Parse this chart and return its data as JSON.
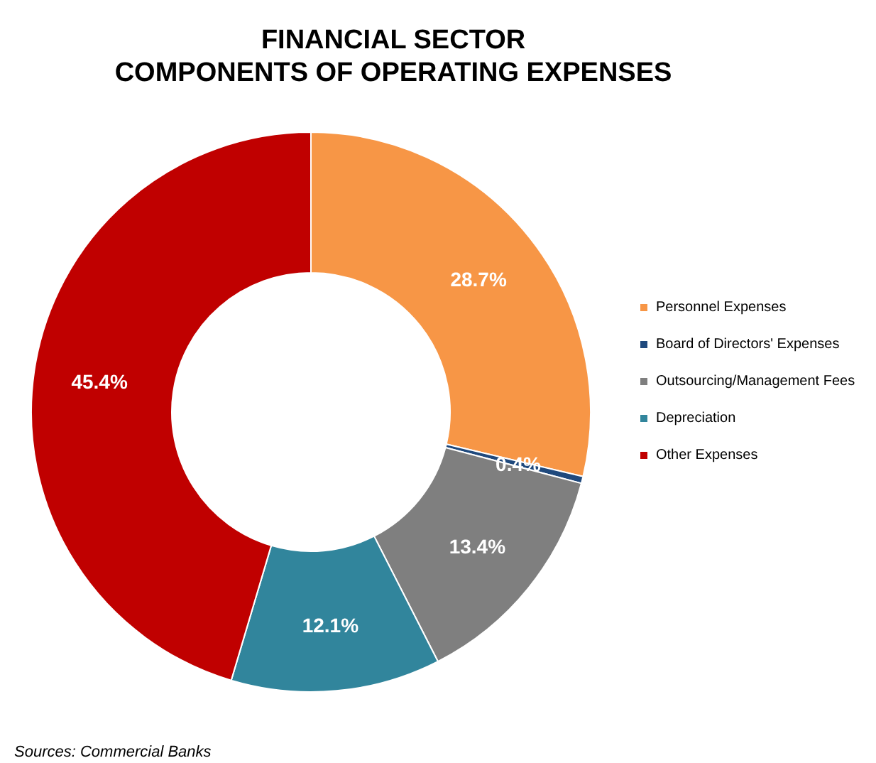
{
  "chart_data": {
    "type": "donut",
    "title": "FINANCIAL SECTOR\nCOMPONENTS OF OPERATING EXPENSES",
    "categories": [
      "Personnel Expenses",
      "Board of Directors' Expenses",
      "Outsourcing/Management Fees",
      "Depreciation",
      "Other Expenses"
    ],
    "values": [
      28.7,
      0.4,
      13.4,
      12.1,
      45.4
    ],
    "colors": [
      "#f79646",
      "#1f497d",
      "#7f7f7f",
      "#31859c",
      "#c00000"
    ],
    "value_labels": [
      "28.7%",
      "0.4%",
      "13.4%",
      "12.1%",
      "45.4%"
    ],
    "legend": "right",
    "annotations": [
      "Sources: Commercial Banks"
    ]
  }
}
